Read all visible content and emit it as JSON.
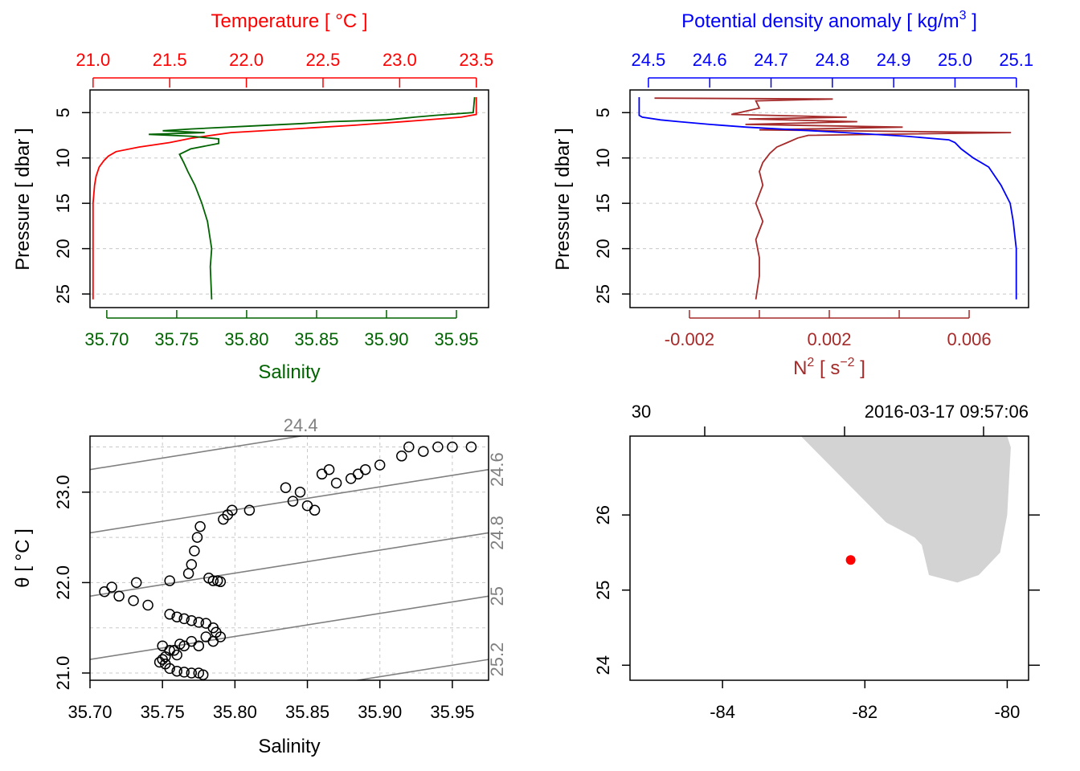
{
  "colors": {
    "temperature": "#ff0000",
    "salinity": "#006400",
    "density": "#0000ff",
    "n2": "#a52a2a",
    "land": "#d3d3d3",
    "station": "#ff0000",
    "isopycnal": "#808080"
  },
  "chart_data": [
    {
      "panel": "profile-temperature-salinity",
      "type": "line",
      "top_axis_label": "Temperature [ °C ]",
      "bottom_axis_label": "Salinity",
      "y_axis_label": "Pressure [ dbar ]",
      "ylim": [
        26.5,
        2.5
      ],
      "pressure_ticks": [
        "5",
        "10",
        "15",
        "20",
        "25"
      ],
      "temperature_xlim": [
        20.98,
        23.58
      ],
      "temperature_ticks": [
        "21.0",
        "21.5",
        "22.0",
        "22.5",
        "23.0",
        "23.5"
      ],
      "salinity_xlim": [
        35.688,
        35.973
      ],
      "salinity_ticks": [
        "35.70",
        "35.75",
        "35.80",
        "35.85",
        "35.90",
        "35.95"
      ],
      "series": [
        {
          "name": "temperature",
          "points": [
            [
              23.5,
              3.3
            ],
            [
              23.5,
              5.2
            ],
            [
              23.4,
              5.5
            ],
            [
              23.1,
              5.9
            ],
            [
              22.7,
              6.4
            ],
            [
              22.3,
              6.8
            ],
            [
              21.9,
              7.2
            ],
            [
              21.65,
              7.8
            ],
            [
              21.5,
              8.3
            ],
            [
              21.3,
              8.8
            ],
            [
              21.15,
              9.3
            ],
            [
              21.1,
              9.8
            ],
            [
              21.07,
              10.3
            ],
            [
              21.04,
              11.0
            ],
            [
              21.02,
              12.0
            ],
            [
              21.01,
              13.0
            ],
            [
              21.0,
              15.0
            ],
            [
              21.0,
              20.0
            ],
            [
              21.0,
              25.6
            ]
          ]
        },
        {
          "name": "salinity",
          "points": [
            [
              35.963,
              3.3
            ],
            [
              35.962,
              5.0
            ],
            [
              35.935,
              5.3
            ],
            [
              35.92,
              5.5
            ],
            [
              35.9,
              5.8
            ],
            [
              35.86,
              6.0
            ],
            [
              35.84,
              6.2
            ],
            [
              35.8,
              6.5
            ],
            [
              35.76,
              6.8
            ],
            [
              35.74,
              7.0
            ],
            [
              35.77,
              7.2
            ],
            [
              35.73,
              7.4
            ],
            [
              35.76,
              7.6
            ],
            [
              35.78,
              7.9
            ],
            [
              35.78,
              8.4
            ],
            [
              35.76,
              9.0
            ],
            [
              35.752,
              9.6
            ],
            [
              35.755,
              10.5
            ],
            [
              35.758,
              11.5
            ],
            [
              35.763,
              13.0
            ],
            [
              35.768,
              15.0
            ],
            [
              35.772,
              17.0
            ],
            [
              35.775,
              20.0
            ],
            [
              35.774,
              22.0
            ],
            [
              35.775,
              25.6
            ]
          ]
        }
      ]
    },
    {
      "panel": "profile-density-n2",
      "type": "line",
      "top_axis_label": "Potential density anomaly [ kg/m³ ]",
      "top_axis_label_main": "Potential density anomaly [ kg/m",
      "top_axis_label_sup": "3",
      "top_axis_label_end": " ]",
      "bottom_axis_label": "N² [ s⁻² ]",
      "bottom_axis_label_main": "N",
      "bottom_axis_label_sup1": "2",
      "bottom_axis_label_mid": " [ s",
      "bottom_axis_label_sup2": "−2",
      "bottom_axis_label_end": " ]",
      "y_axis_label": "Pressure [ dbar ]",
      "ylim": [
        26.5,
        2.5
      ],
      "pressure_ticks": [
        "5",
        "10",
        "15",
        "20",
        "25"
      ],
      "density_xlim": [
        24.47,
        25.12
      ],
      "density_ticks": [
        "24.5",
        "24.6",
        "24.7",
        "24.8",
        "24.9",
        "25.0",
        "25.1"
      ],
      "n2_xlim": [
        -0.0037,
        0.0077
      ],
      "n2_ticks": [
        "-0.002",
        "0.002",
        "0.006"
      ],
      "n2_tick_values": [
        -0.002,
        0,
        0.002,
        0.004,
        0.006
      ],
      "series": [
        {
          "name": "density",
          "points": [
            [
              24.485,
              3.3
            ],
            [
              24.485,
              5.3
            ],
            [
              24.49,
              5.5
            ],
            [
              24.52,
              5.8
            ],
            [
              24.55,
              6.0
            ],
            [
              24.6,
              6.3
            ],
            [
              24.66,
              6.6
            ],
            [
              24.74,
              6.9
            ],
            [
              24.82,
              7.2
            ],
            [
              24.92,
              7.6
            ],
            [
              24.99,
              8.0
            ],
            [
              25.0,
              8.3
            ],
            [
              25.01,
              9.0
            ],
            [
              25.03,
              10.0
            ],
            [
              25.055,
              11.0
            ],
            [
              25.075,
              13.0
            ],
            [
              25.09,
              15.0
            ],
            [
              25.095,
              17.0
            ],
            [
              25.1,
              20.0
            ],
            [
              25.1,
              25.6
            ]
          ]
        },
        {
          "name": "N2",
          "points": [
            [
              -0.003,
              3.4
            ],
            [
              0.0021,
              3.5
            ],
            [
              -0.0001,
              3.7
            ],
            [
              0.0,
              4.5
            ],
            [
              -0.0008,
              5.2
            ],
            [
              0.0025,
              5.5
            ],
            [
              -0.0003,
              5.7
            ],
            [
              0.0028,
              6.0
            ],
            [
              -0.0004,
              6.3
            ],
            [
              0.0041,
              6.6
            ],
            [
              0.0,
              6.9
            ],
            [
              0.0072,
              7.2
            ],
            [
              0.0014,
              7.5
            ],
            [
              0.0011,
              7.8
            ],
            [
              0.0008,
              8.3
            ],
            [
              0.0005,
              8.8
            ],
            [
              0.0003,
              9.5
            ],
            [
              0.0001,
              10.5
            ],
            [
              0.0,
              11.5
            ],
            [
              0.0001,
              13.0
            ],
            [
              -0.0001,
              15.0
            ],
            [
              0.0001,
              17.0
            ],
            [
              -0.0001,
              19.0
            ],
            [
              0.0,
              21.0
            ],
            [
              0.0,
              23.0
            ],
            [
              -0.0001,
              25.6
            ]
          ]
        }
      ]
    },
    {
      "panel": "ts-diagram",
      "type": "scatter",
      "xlabel": "Salinity",
      "ylabel": "θ [ °C ]",
      "xlim": [
        35.7,
        35.975
      ],
      "ylim": [
        20.92,
        23.62
      ],
      "x_ticks": [
        "35.70",
        "35.75",
        "35.80",
        "35.85",
        "35.90",
        "35.95"
      ],
      "y_ticks": [
        "21.0",
        "22.0",
        "23.0"
      ],
      "y_tick_values": [
        21.0,
        22.0,
        23.0
      ],
      "y_grid_values": [
        21.0,
        21.5,
        22.0,
        22.5,
        23.0,
        23.5
      ],
      "isopycnals": [
        {
          "label": "24.4",
          "points": [
            [
              35.7,
              23.25
            ],
            [
              35.975,
              23.95
            ]
          ]
        },
        {
          "label": "24.6",
          "points": [
            [
              35.7,
              22.55
            ],
            [
              35.975,
              23.25
            ]
          ]
        },
        {
          "label": "24.8",
          "points": [
            [
              35.7,
              21.85
            ],
            [
              35.975,
              22.55
            ]
          ]
        },
        {
          "label": "25",
          "points": [
            [
              35.7,
              21.15
            ],
            [
              35.975,
              21.85
            ]
          ]
        },
        {
          "label": "25.2",
          "points": [
            [
              35.7,
              20.45
            ],
            [
              35.975,
              21.15
            ]
          ]
        }
      ],
      "points": [
        [
          35.71,
          21.9
        ],
        [
          35.715,
          21.95
        ],
        [
          35.72,
          21.85
        ],
        [
          35.73,
          21.8
        ],
        [
          35.732,
          22.0
        ],
        [
          35.74,
          21.75
        ],
        [
          35.755,
          22.02
        ],
        [
          35.755,
          21.65
        ],
        [
          35.76,
          21.62
        ],
        [
          35.765,
          21.6
        ],
        [
          35.768,
          22.1
        ],
        [
          35.77,
          22.2
        ],
        [
          35.772,
          22.35
        ],
        [
          35.774,
          22.5
        ],
        [
          35.776,
          22.62
        ],
        [
          35.77,
          21.58
        ],
        [
          35.775,
          21.56
        ],
        [
          35.78,
          21.55
        ],
        [
          35.782,
          22.05
        ],
        [
          35.785,
          22.02
        ],
        [
          35.788,
          22.02
        ],
        [
          35.79,
          22.01
        ],
        [
          35.785,
          21.5
        ],
        [
          35.787,
          21.45
        ],
        [
          35.79,
          21.4
        ],
        [
          35.792,
          22.7
        ],
        [
          35.795,
          22.75
        ],
        [
          35.798,
          22.8
        ],
        [
          35.81,
          22.8
        ],
        [
          35.835,
          23.05
        ],
        [
          35.84,
          22.9
        ],
        [
          35.845,
          23.0
        ],
        [
          35.85,
          22.85
        ],
        [
          35.855,
          22.8
        ],
        [
          35.86,
          23.2
        ],
        [
          35.865,
          23.25
        ],
        [
          35.87,
          23.1
        ],
        [
          35.88,
          23.15
        ],
        [
          35.885,
          23.2
        ],
        [
          35.89,
          23.25
        ],
        [
          35.9,
          23.3
        ],
        [
          35.915,
          23.4
        ],
        [
          35.92,
          23.5
        ],
        [
          35.93,
          23.45
        ],
        [
          35.94,
          23.5
        ],
        [
          35.95,
          23.5
        ],
        [
          35.963,
          23.5
        ],
        [
          35.75,
          21.3
        ],
        [
          35.755,
          21.25
        ],
        [
          35.76,
          21.2
        ],
        [
          35.765,
          21.3
        ],
        [
          35.77,
          21.35
        ],
        [
          35.775,
          21.3
        ],
        [
          35.78,
          21.4
        ],
        [
          35.785,
          21.35
        ],
        [
          35.75,
          21.15
        ],
        [
          35.752,
          21.1
        ],
        [
          35.755,
          21.05
        ],
        [
          35.76,
          21.02
        ],
        [
          35.765,
          21.01
        ],
        [
          35.77,
          21.0
        ],
        [
          35.775,
          21.0
        ],
        [
          35.778,
          20.98
        ],
        [
          35.748,
          21.12
        ],
        [
          35.752,
          21.18
        ],
        [
          35.758,
          21.25
        ],
        [
          35.762,
          21.32
        ]
      ]
    },
    {
      "panel": "map",
      "type": "map",
      "top_left_label": "30",
      "top_right_label": "2016-03-17 09:57:06",
      "xlim": [
        -85.3,
        -79.7
      ],
      "ylim": [
        23.8,
        27.05
      ],
      "x_ticks": [
        "-84",
        "-82",
        "-80"
      ],
      "x_tick_values": [
        -84,
        -82,
        -80
      ],
      "y_ticks": [
        "24",
        "25",
        "26"
      ],
      "y_tick_values": [
        24,
        25,
        26
      ],
      "station": {
        "lon": -82.2,
        "lat": 25.4
      },
      "land_polygon": [
        [
          -82.9,
          27.05
        ],
        [
          -80.0,
          27.05
        ],
        [
          -79.95,
          26.9
        ],
        [
          -80.0,
          26.0
        ],
        [
          -80.1,
          25.5
        ],
        [
          -80.4,
          25.2
        ],
        [
          -80.7,
          25.1
        ],
        [
          -81.1,
          25.2
        ],
        [
          -81.2,
          25.6
        ],
        [
          -81.3,
          25.7
        ],
        [
          -81.7,
          25.9
        ],
        [
          -82.9,
          27.05
        ]
      ]
    }
  ]
}
